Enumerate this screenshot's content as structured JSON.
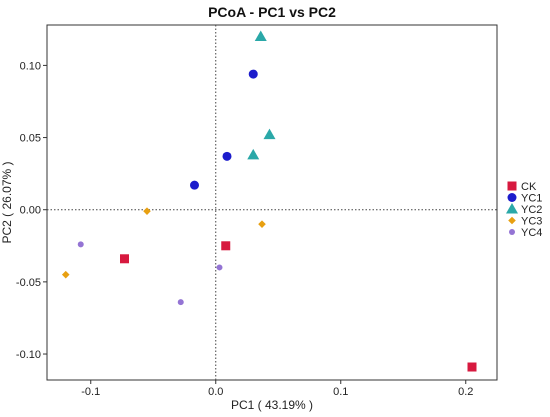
{
  "chart_data": {
    "type": "scatter",
    "title": "PCoA - PC1 vs PC2",
    "xlabel": "PC1 ( 43.19% )",
    "ylabel": "PC2 ( 26.07% )",
    "xlim": [
      -0.135,
      0.225
    ],
    "ylim": [
      -0.118,
      0.128
    ],
    "xticks": [
      -0.1,
      0.0,
      0.1,
      0.2
    ],
    "xtick_labels": [
      "-0.1",
      "0.0",
      "0.1",
      "0.2"
    ],
    "yticks": [
      -0.1,
      -0.05,
      0.0,
      0.05,
      0.1
    ],
    "ytick_labels": [
      "-0.10",
      "-0.05",
      "0.00",
      "0.05",
      "0.10"
    ],
    "grid": false,
    "reference_lines": {
      "x": 0,
      "y": 0,
      "style": "dotted"
    },
    "legend_position": "right",
    "series": [
      {
        "name": "CK",
        "color": "#d7193f",
        "marker": "square",
        "points": [
          [
            -0.073,
            -0.034
          ],
          [
            0.008,
            -0.025
          ],
          [
            0.205,
            -0.109
          ]
        ]
      },
      {
        "name": "YC1",
        "color": "#1c1ccc",
        "marker": "circle",
        "points": [
          [
            -0.017,
            0.017
          ],
          [
            0.009,
            0.037
          ],
          [
            0.03,
            0.094
          ]
        ]
      },
      {
        "name": "YC2",
        "color": "#2aa8a8",
        "marker": "triangle",
        "points": [
          [
            0.036,
            0.12
          ],
          [
            0.043,
            0.052
          ],
          [
            0.03,
            0.038
          ]
        ]
      },
      {
        "name": "YC3",
        "color": "#e8a011",
        "marker": "diamond",
        "points": [
          [
            -0.12,
            -0.045
          ],
          [
            -0.055,
            -0.001
          ],
          [
            0.037,
            -0.01
          ]
        ]
      },
      {
        "name": "YC4",
        "color": "#9474d4",
        "marker": "circle-small",
        "points": [
          [
            -0.108,
            -0.024
          ],
          [
            -0.028,
            -0.064
          ],
          [
            0.003,
            -0.04
          ]
        ]
      }
    ]
  }
}
